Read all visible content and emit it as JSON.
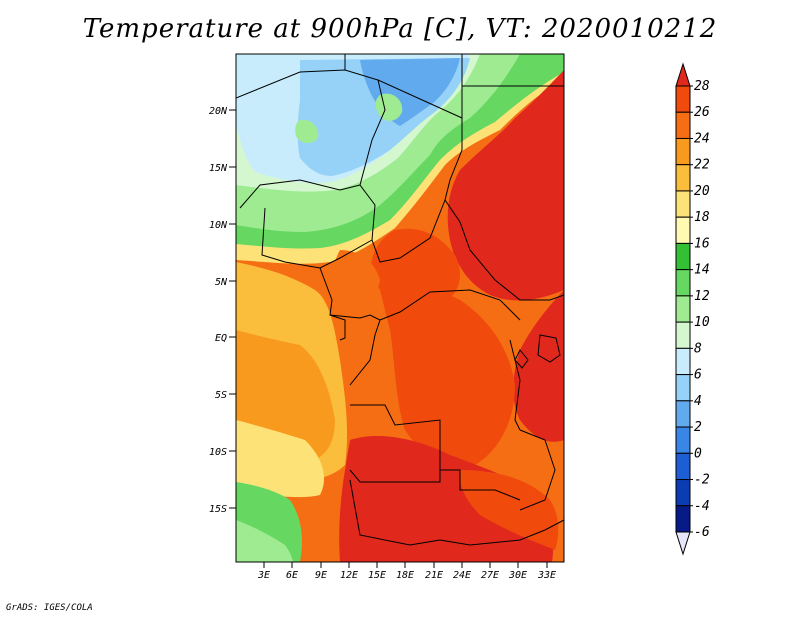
{
  "title": "Temperature at 900hPa [C], VT: 2020010212",
  "credit": "GrADS: IGES/COLA",
  "lat_ticks": [
    "20N",
    "15N",
    "10N",
    "5N",
    "EQ",
    "5S",
    "10S",
    "15S"
  ],
  "lon_ticks": [
    "3E",
    "6E",
    "9E",
    "12E",
    "15E",
    "18E",
    "21E",
    "24E",
    "27E",
    "30E",
    "33E"
  ],
  "colorbar": {
    "labels": [
      "28",
      "26",
      "24",
      "22",
      "20",
      "18",
      "16",
      "14",
      "12",
      "10",
      "8",
      "6",
      "4",
      "2",
      "0",
      "-2",
      "-4",
      "-6"
    ],
    "colors": [
      "#e0281c",
      "#f04a0c",
      "#f66e14",
      "#f89a1e",
      "#fbbe3c",
      "#fde278",
      "#fff9b2",
      "#34c034",
      "#66d862",
      "#9eeb92",
      "#d4f7d0",
      "#c8ecfc",
      "#96d2f8",
      "#62aaee",
      "#3a86e6",
      "#1e5ed4",
      "#0c3cb4",
      "#061a88",
      "#081060"
    ]
  }
}
